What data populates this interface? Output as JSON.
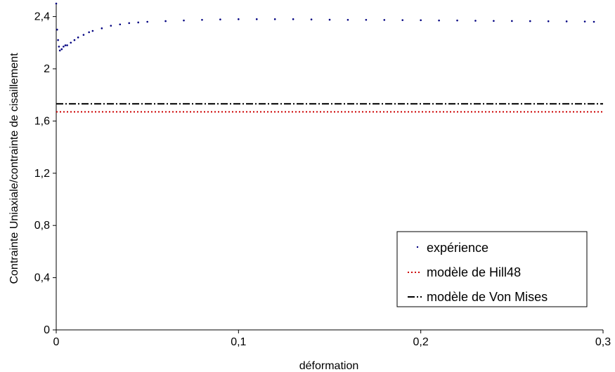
{
  "chart_data": {
    "type": "scatter",
    "title": "",
    "xlabel": "déformation",
    "ylabel": "Contrainte Uniaxiale/contrainte de cisaillement",
    "xlim": [
      0,
      0.3
    ],
    "ylim": [
      0,
      2.5
    ],
    "xticks": [
      0,
      0.1,
      0.2,
      0.3
    ],
    "xtick_labels": [
      "0",
      "0,1",
      "0,2",
      "0,3"
    ],
    "yticks": [
      0,
      0.4,
      0.8,
      1.2,
      1.6,
      2.0,
      2.4
    ],
    "ytick_labels": [
      "0",
      "0,4",
      "0,8",
      "1,2",
      "1,6",
      "2",
      "2,4"
    ],
    "grid": false,
    "legend_position": "bottom-right",
    "series": [
      {
        "name": "expérience",
        "style": "dots",
        "color": "#000080",
        "x": [
          0,
          0.0005,
          0.001,
          0.0015,
          0.002,
          0.003,
          0.004,
          0.005,
          0.006,
          0.008,
          0.01,
          0.012,
          0.015,
          0.018,
          0.02,
          0.025,
          0.03,
          0.035,
          0.04,
          0.045,
          0.05,
          0.06,
          0.07,
          0.08,
          0.09,
          0.1,
          0.11,
          0.12,
          0.13,
          0.14,
          0.15,
          0.16,
          0.17,
          0.18,
          0.19,
          0.2,
          0.21,
          0.22,
          0.23,
          0.24,
          0.25,
          0.26,
          0.27,
          0.28,
          0.29,
          0.295
        ],
        "y": [
          2.5,
          2.3,
          2.22,
          2.17,
          2.14,
          2.15,
          2.17,
          2.18,
          2.18,
          2.2,
          2.22,
          2.24,
          2.26,
          2.28,
          2.29,
          2.31,
          2.33,
          2.34,
          2.35,
          2.355,
          2.36,
          2.365,
          2.37,
          2.375,
          2.378,
          2.38,
          2.38,
          2.38,
          2.38,
          2.378,
          2.376,
          2.375,
          2.375,
          2.374,
          2.373,
          2.372,
          2.37,
          2.37,
          2.368,
          2.367,
          2.366,
          2.365,
          2.364,
          2.363,
          2.362,
          2.36
        ]
      },
      {
        "name": "modèle de Hill48",
        "style": "dotted",
        "color": "#cc0000",
        "x": [
          0,
          0.3
        ],
        "y": [
          1.67,
          1.67
        ]
      },
      {
        "name": "modèle de Von Mises",
        "style": "dashdot",
        "color": "#000000",
        "x": [
          0,
          0.3
        ],
        "y": [
          1.732,
          1.732
        ]
      }
    ]
  }
}
